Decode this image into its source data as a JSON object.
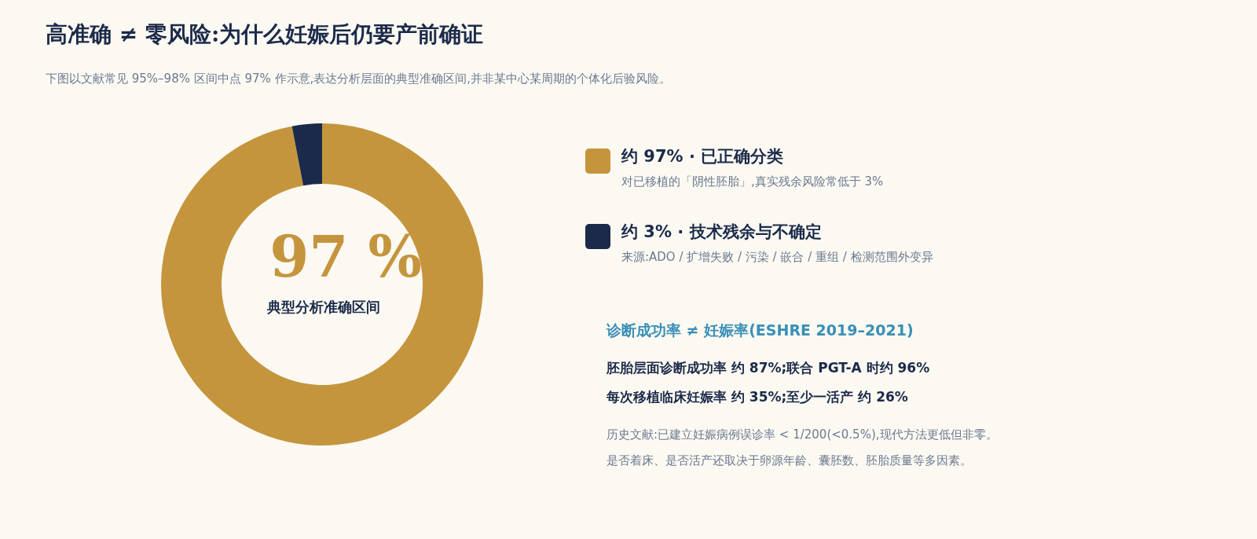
{
  "chart_data": {
    "type": "donut",
    "title": "高准确 ≠ 零风险:为什么妊娠后仍要产前确证",
    "subtitle": "下图以文献常见 95%–98% 区间中点 97% 作示意,表达分析层面的典型准确区间,并非某中心某周期的个体化后验风险。",
    "categories": [
      "约 97% · 已正确分类",
      "约 3% · 技术残余与不确定"
    ],
    "values": [
      97,
      3
    ],
    "colors": [
      "#c5953d",
      "#1b2a4a"
    ],
    "legend": "right",
    "annotations": [
      "97 %",
      "典型分析准确区间",
      "对已移植的「阴性胚胎」,真实残余风险常低于 3%",
      "来源:ADO / 扩增失败 / 污染 / 嵌合 / 重组 / 检测范围外变异",
      "诊断成功率 ≠ 妊娠率(ESHRE 2019–2021)",
      "胚胎层面诊断成功率 约 87%;联合 PGT-A 时约 96%",
      "每次移植临床妊娠率 约 35%;至少一活产 约 26%",
      "历史文献:已建立妊娠病例误诊率 < 1/200(<0.5%),现代方法更低但非零。",
      "是否着床、是否活产还取决于卵源年龄、囊胚数、胚胎质量等多因素。"
    ]
  }
}
